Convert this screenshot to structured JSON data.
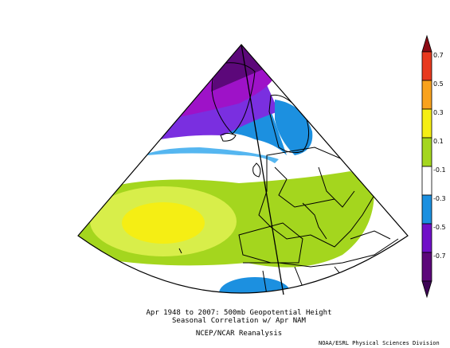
{
  "figure": {
    "title_line1": "Apr 1948 to 2007: 500mb Geopotential Height",
    "title_line2": "Seasonal Correlation w/ Apr NAM",
    "title_line3": "NCEP/NCAR Reanalysis",
    "credit": "NOAA/ESRL Physical Sciences Division"
  },
  "colorbar": {
    "tick_labels": [
      "0.7",
      "0.5",
      "0.3",
      "0.1",
      "-0.1",
      "-0.3",
      "-0.5",
      "-0.7"
    ],
    "colors": [
      "#e8391e",
      "#f9a21d",
      "#f5ee14",
      "#a4d61e",
      "#ffffff",
      "#1c90e0",
      "#7010c8",
      "#5c087a"
    ],
    "range": [
      -0.7,
      0.7
    ]
  },
  "palette": {
    "purple_dark": "#5c087a",
    "purple": "#9e12c8",
    "violet": "#7a2fe0",
    "blue": "#1c90e0",
    "light_blue": "#55b6f0",
    "white": "#ffffff",
    "light_green": "#a4d61e",
    "yellow_green": "#d8ee4a",
    "yellow": "#f5ee14",
    "land_outline": "#000000"
  }
}
